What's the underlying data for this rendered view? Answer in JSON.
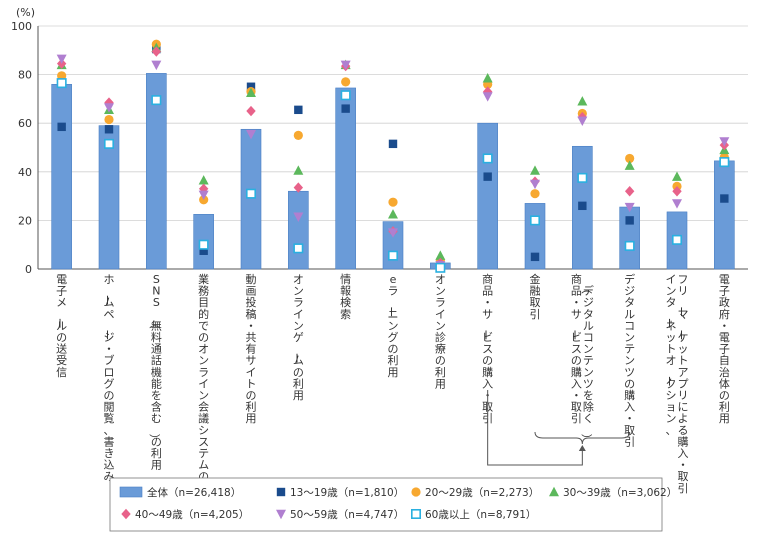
{
  "chart_data": {
    "type": "bar",
    "unit_label": "(%)",
    "ylim": [
      0,
      100
    ],
    "yticks": [
      0,
      20,
      40,
      60,
      80,
      100
    ],
    "categories": [
      "電子メールの送受信",
      "ホームページ・ブログの閲覧、書き込み",
      "SNS（無料通話機能を含む）の利用",
      "業務目的でのオンライン会議システムの利用",
      "動画投稿・共有サイトの利用",
      "オンラインゲームの利用",
      "情報検索",
      "eラーニングの利用",
      "オンライン診療の利用",
      "商品・サービスの購入・取引",
      "金融取引",
      "商品・サービスの購入・取引（デジタルコンテンツを除く）",
      "デジタルコンテンツの購入・取引",
      "インターネットオークション、フリーマーケットアプリによる購入・取引",
      "電子政府・電子自治体の利用"
    ],
    "bar_series": {
      "name": "全体（n=26,418）",
      "color": "#6a9bd8",
      "values": [
        76,
        59,
        80.5,
        22.5,
        57.5,
        32,
        74.5,
        19.5,
        2.5,
        60,
        27,
        50.5,
        25.5,
        23.5,
        44.5
      ]
    },
    "series": [
      {
        "name": "13～19歳（n=1,810）",
        "marker": "square",
        "color": "#1a4b8c",
        "values": [
          58.5,
          57.5,
          90.5,
          7.5,
          75,
          65.5,
          66,
          51.5,
          1,
          38,
          5,
          26,
          20,
          12,
          29
        ]
      },
      {
        "name": "20～29歳（n=2,273）",
        "marker": "circle",
        "color": "#f7a830",
        "values": [
          79.5,
          61.5,
          92.5,
          28.5,
          73,
          55,
          77,
          27.5,
          3.5,
          76,
          31,
          64,
          45.5,
          34,
          46
        ]
      },
      {
        "name": "30～39歳（n=3,062）",
        "marker": "triangle",
        "color": "#5cb85c",
        "values": [
          84,
          65.5,
          91,
          36.5,
          72.5,
          40.5,
          84,
          22.5,
          5.5,
          78.5,
          40.5,
          69,
          42.5,
          38,
          49
        ]
      },
      {
        "name": "40～49歳（n=4,205）",
        "marker": "diamond",
        "color": "#e8628a",
        "values": [
          84.5,
          68.5,
          89.5,
          33,
          65,
          33.5,
          83.5,
          15.5,
          2.5,
          73,
          36,
          62.5,
          32,
          32,
          51
        ]
      },
      {
        "name": "50～59歳（n=4,747）",
        "marker": "triangle-down",
        "color": "#b07fd0",
        "values": [
          86.5,
          66.5,
          84,
          30.5,
          55.5,
          21.5,
          84,
          15,
          1.5,
          71,
          35,
          61,
          25.5,
          27,
          52.5
        ]
      },
      {
        "name": "60歳以上（n=8,791）",
        "marker": "open-square",
        "color": "#2ab0e0",
        "values": [
          76.5,
          51.5,
          69.5,
          10,
          31,
          8.5,
          71.5,
          5.5,
          0.5,
          45.5,
          20,
          37.5,
          9.5,
          12,
          44
        ]
      }
    ],
    "annotation": "brace and connector linking 金融取引 and 商品・サービスの購入・取引（デジタルコンテンツを除く）/ デジタルコンテンツの購入・取引 to 商品・サービスの購入・取引"
  }
}
